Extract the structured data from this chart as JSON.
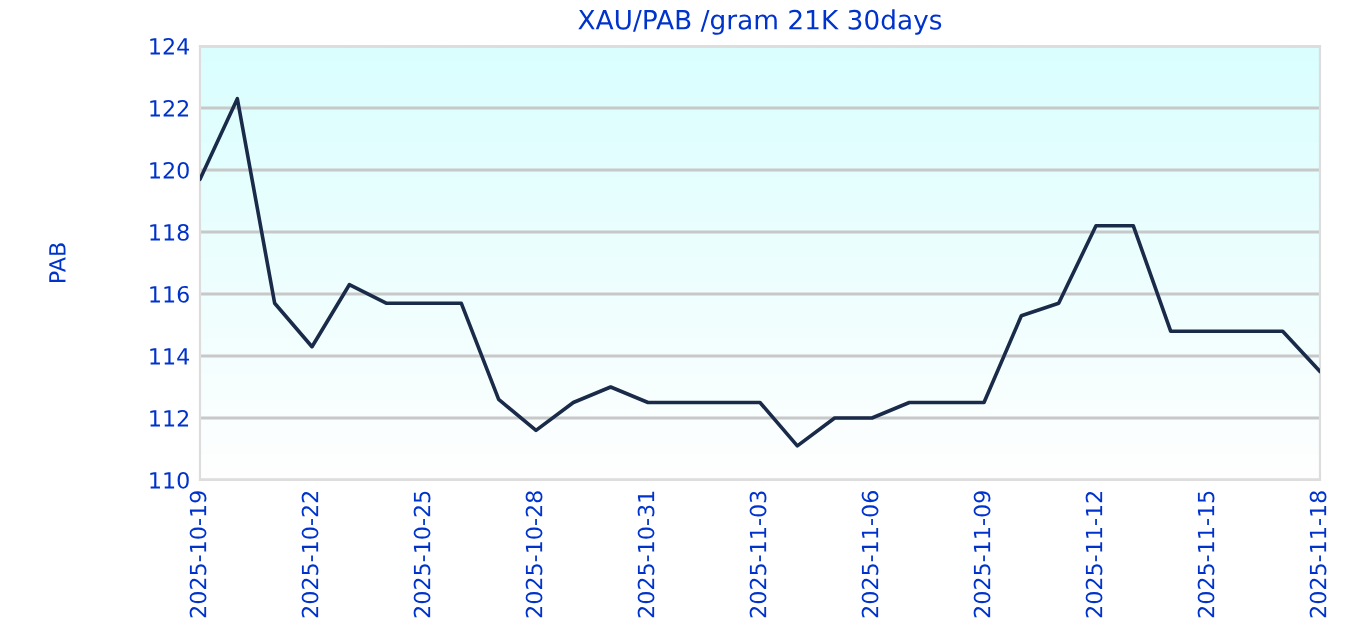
{
  "chart_data": {
    "type": "line",
    "title": "XAU/PAB /gram 21K 30days",
    "ylabel": "PAB",
    "x": [
      "2025-10-19",
      "2025-10-20",
      "2025-10-21",
      "2025-10-22",
      "2025-10-23",
      "2025-10-24",
      "2025-10-25",
      "2025-10-26",
      "2025-10-27",
      "2025-10-28",
      "2025-10-29",
      "2025-10-30",
      "2025-10-31",
      "2025-11-01",
      "2025-11-02",
      "2025-11-03",
      "2025-11-04",
      "2025-11-05",
      "2025-11-06",
      "2025-11-07",
      "2025-11-08",
      "2025-11-09",
      "2025-11-10",
      "2025-11-11",
      "2025-11-12",
      "2025-11-13",
      "2025-11-14",
      "2025-11-15",
      "2025-11-16",
      "2025-11-17",
      "2025-11-18"
    ],
    "series": [
      {
        "color": "#1a2b4a",
        "values": [
          119.7,
          122.3,
          115.7,
          114.3,
          116.3,
          115.7,
          115.7,
          115.7,
          112.6,
          111.6,
          112.5,
          113.0,
          112.5,
          112.5,
          112.5,
          112.5,
          111.1,
          112.0,
          112.0,
          112.5,
          112.5,
          112.5,
          115.3,
          115.7,
          118.2,
          118.2,
          114.8,
          114.8,
          114.8,
          114.8,
          113.5
        ]
      }
    ],
    "xlim": [
      "2025-10-19",
      "2025-11-18"
    ],
    "xticks": [
      "2025-10-19",
      "2025-10-22",
      "2025-10-25",
      "2025-10-28",
      "2025-10-31",
      "2025-11-03",
      "2025-11-06",
      "2025-11-09",
      "2025-11-12",
      "2025-11-15",
      "2025-11-18"
    ],
    "ylim": [
      110,
      124
    ],
    "yticks": [
      110,
      112,
      114,
      116,
      118,
      120,
      122,
      124
    ],
    "grid": "y",
    "legend": false,
    "marker": "none",
    "line_style": "solid"
  }
}
